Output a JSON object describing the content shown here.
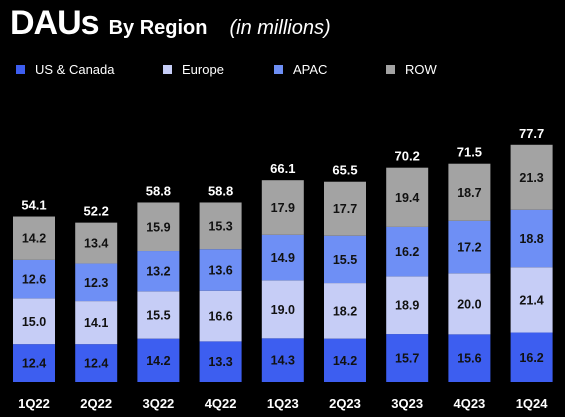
{
  "header": {
    "title": "DAUs",
    "subtitle": "By Region",
    "unit": "(in millions)"
  },
  "colors": {
    "background": "#000000",
    "us_canada": "#3d5ef0",
    "europe": "#c6cdf6",
    "apac": "#6e8ff5",
    "row": "#a3a3a3",
    "segment_label_dark": "#111111",
    "segment_label_light": "#ffffff"
  },
  "legend": [
    {
      "label": "US & Canada",
      "color": "#3d5ef0"
    },
    {
      "label": "Europe",
      "color": "#c6cdf6"
    },
    {
      "label": "APAC",
      "color": "#6e8ff5"
    },
    {
      "label": "ROW",
      "color": "#a3a3a3"
    }
  ],
  "chart_data": {
    "type": "bar",
    "stacked": true,
    "title": "DAUs By Region",
    "subtitle": "(in millions)",
    "categories": [
      "1Q22",
      "2Q22",
      "3Q22",
      "4Q22",
      "1Q23",
      "2Q23",
      "3Q23",
      "4Q23",
      "1Q24"
    ],
    "series": [
      {
        "name": "US & Canada",
        "color": "#3d5ef0",
        "values": [
          12.4,
          12.4,
          14.2,
          13.3,
          14.3,
          14.2,
          15.7,
          15.6,
          16.2
        ]
      },
      {
        "name": "Europe",
        "color": "#c6cdf6",
        "values": [
          15.0,
          14.1,
          15.5,
          16.6,
          19.0,
          18.2,
          18.9,
          20.0,
          21.4
        ]
      },
      {
        "name": "APAC",
        "color": "#6e8ff5",
        "values": [
          12.6,
          12.3,
          13.2,
          13.6,
          14.9,
          15.5,
          16.2,
          17.2,
          18.8
        ]
      },
      {
        "name": "ROW",
        "color": "#a3a3a3",
        "values": [
          14.2,
          13.4,
          15.9,
          15.3,
          17.9,
          17.7,
          19.4,
          18.7,
          21.3
        ]
      }
    ],
    "totals": [
      "54.1",
      "52.2",
      "58.8",
      "58.8",
      "66.1",
      "65.5",
      "70.2",
      "71.5",
      "77.7"
    ],
    "value_labels": [
      [
        "12.4",
        "12.4",
        "14.2",
        "13.3",
        "14.3",
        "14.2",
        "15.7",
        "15.6",
        "16.2"
      ],
      [
        "15.0",
        "14.1",
        "15.5",
        "16.6",
        "19.0",
        "18.2",
        "18.9",
        "20.0",
        "21.4"
      ],
      [
        "12.6",
        "12.3",
        "13.2",
        "13.6",
        "14.9",
        "15.5",
        "16.2",
        "17.2",
        "18.8"
      ],
      [
        "14.2",
        "13.4",
        "15.9",
        "15.3",
        "17.9",
        "17.7",
        "19.4",
        "18.7",
        "21.3"
      ]
    ],
    "legend_position": "top",
    "grid": false,
    "y_axis_visible": false
  }
}
